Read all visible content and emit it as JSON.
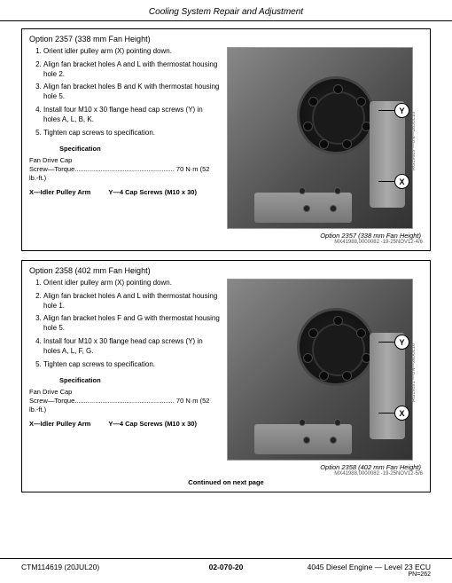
{
  "header": {
    "title": "Cooling System Repair and Adjustment"
  },
  "option1": {
    "title": "Option 2357 (338 mm Fan Height)",
    "steps": [
      "Orient idler pulley arm (X) pointing down.",
      "Align fan bracket holes A and L with thermostat housing hole 2.",
      "Align fan bracket holes B and K with thermostat housing hole 5.",
      "Install four M10 x 30 flange head cap screws (Y) in holes A, L, B, K.",
      "Tighten cap screws to specification."
    ],
    "spec_heading": "Specification",
    "spec_group": "Fan Drive Cap",
    "spec_label": "Screw—Torque",
    "spec_value": "70 N·m (52 lb.-ft.)",
    "legend_x": "X—Idler Pulley Arm",
    "legend_y": "Y—4 Cap Screws (M10 x 30)",
    "callout_y": "Y",
    "callout_x": "X",
    "caption": "Option 2357 (338 mm Fan Height)",
    "img_code": "MX41988,0000082 -19-25NOV12-4/6"
  },
  "option2": {
    "title": "Option 2358 (402 mm Fan Height)",
    "steps": [
      "Orient idler pulley arm (X) pointing down.",
      "Align fan bracket holes A and L with thermostat housing hole 1.",
      "Align fan bracket holes F and G with thermostat housing hole 5.",
      "Install four M10 x 30 flange head cap screws (Y) in holes A, L, F, G.",
      "Tighten cap screws to specification."
    ],
    "spec_heading": "Specification",
    "spec_group": "Fan Drive Cap",
    "spec_label": "Screw—Torque",
    "spec_value": "70 N·m (52 lb.-ft.)",
    "legend_x": "X—Idler Pulley Arm",
    "legend_y": "Y—4 Cap Screws (M10 x 30)",
    "callout_y": "Y",
    "callout_x": "X",
    "caption": "Option 2358 (402 mm Fan Height)",
    "img_code": "MX41988,0000082 -19-25NOV12-5/6"
  },
  "continued": "Continued on next page",
  "footer": {
    "left": "CTM114619 (20JUL20)",
    "center": "02-070-20",
    "right": "4045 Diesel Engine — Level 23 ECU",
    "pn": "PN=262"
  },
  "sidecode1": "RG19889 —UN—28JUL10",
  "sidecode2": "RG19891 —UN—28JUL10"
}
